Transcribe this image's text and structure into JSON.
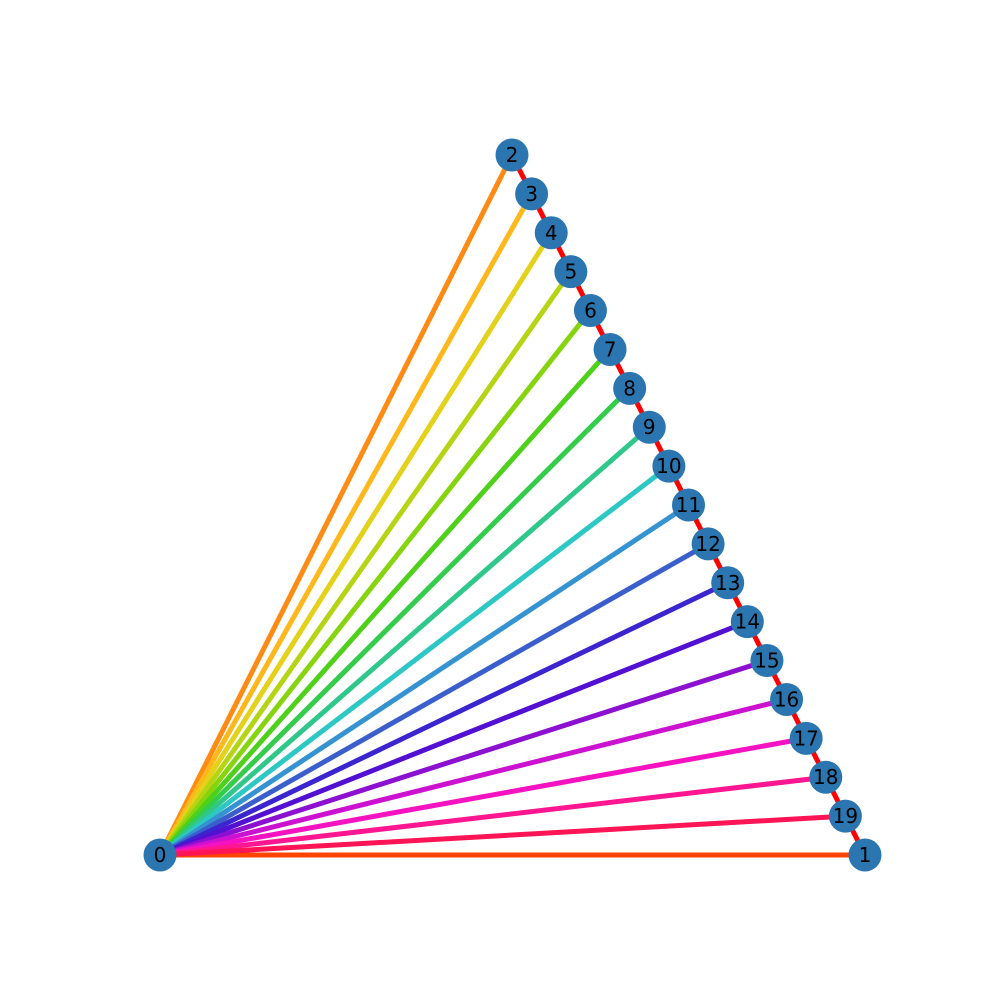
{
  "graph": {
    "node_color": "#2b76b0",
    "label_color": "#000000",
    "chain_edge_color": "#ff0000",
    "hub": "0",
    "nodes": [
      {
        "label": "0"
      },
      {
        "label": "1"
      },
      {
        "label": "2"
      },
      {
        "label": "3"
      },
      {
        "label": "4"
      },
      {
        "label": "5"
      },
      {
        "label": "6"
      },
      {
        "label": "7"
      },
      {
        "label": "8"
      },
      {
        "label": "9"
      },
      {
        "label": "10"
      },
      {
        "label": "11"
      },
      {
        "label": "12"
      },
      {
        "label": "13"
      },
      {
        "label": "14"
      },
      {
        "label": "15"
      },
      {
        "label": "16"
      },
      {
        "label": "17"
      },
      {
        "label": "18"
      },
      {
        "label": "19"
      }
    ],
    "spoke_edges": [
      {
        "from": "0",
        "to": "1",
        "color": "#ff4400"
      },
      {
        "from": "0",
        "to": "2",
        "color": "#ff8a14"
      },
      {
        "from": "0",
        "to": "3",
        "color": "#ffb81c"
      },
      {
        "from": "0",
        "to": "4",
        "color": "#e3d11a"
      },
      {
        "from": "0",
        "to": "5",
        "color": "#b5d413"
      },
      {
        "from": "0",
        "to": "6",
        "color": "#86d40e"
      },
      {
        "from": "0",
        "to": "7",
        "color": "#4fd11b"
      },
      {
        "from": "0",
        "to": "8",
        "color": "#34cc4b"
      },
      {
        "from": "0",
        "to": "9",
        "color": "#2fc88a"
      },
      {
        "from": "0",
        "to": "10",
        "color": "#2ec8c4"
      },
      {
        "from": "0",
        "to": "11",
        "color": "#3493d0"
      },
      {
        "from": "0",
        "to": "12",
        "color": "#3a5ecc"
      },
      {
        "from": "0",
        "to": "13",
        "color": "#3b25cf"
      },
      {
        "from": "0",
        "to": "14",
        "color": "#5210d2"
      },
      {
        "from": "0",
        "to": "15",
        "color": "#8c10d0"
      },
      {
        "from": "0",
        "to": "16",
        "color": "#cc12d0"
      },
      {
        "from": "0",
        "to": "17",
        "color": "#f512c0"
      },
      {
        "from": "0",
        "to": "18",
        "color": "#ff1690"
      },
      {
        "from": "0",
        "to": "19",
        "color": "#ff1455"
      }
    ],
    "chain_edges": [
      {
        "from": "2",
        "to": "3"
      },
      {
        "from": "3",
        "to": "4"
      },
      {
        "from": "4",
        "to": "5"
      },
      {
        "from": "5",
        "to": "6"
      },
      {
        "from": "6",
        "to": "7"
      },
      {
        "from": "7",
        "to": "8"
      },
      {
        "from": "8",
        "to": "9"
      },
      {
        "from": "9",
        "to": "10"
      },
      {
        "from": "10",
        "to": "11"
      },
      {
        "from": "11",
        "to": "12"
      },
      {
        "from": "12",
        "to": "13"
      },
      {
        "from": "13",
        "to": "14"
      },
      {
        "from": "14",
        "to": "15"
      },
      {
        "from": "15",
        "to": "16"
      },
      {
        "from": "16",
        "to": "17"
      },
      {
        "from": "17",
        "to": "18"
      },
      {
        "from": "18",
        "to": "19"
      },
      {
        "from": "19",
        "to": "1"
      }
    ]
  }
}
